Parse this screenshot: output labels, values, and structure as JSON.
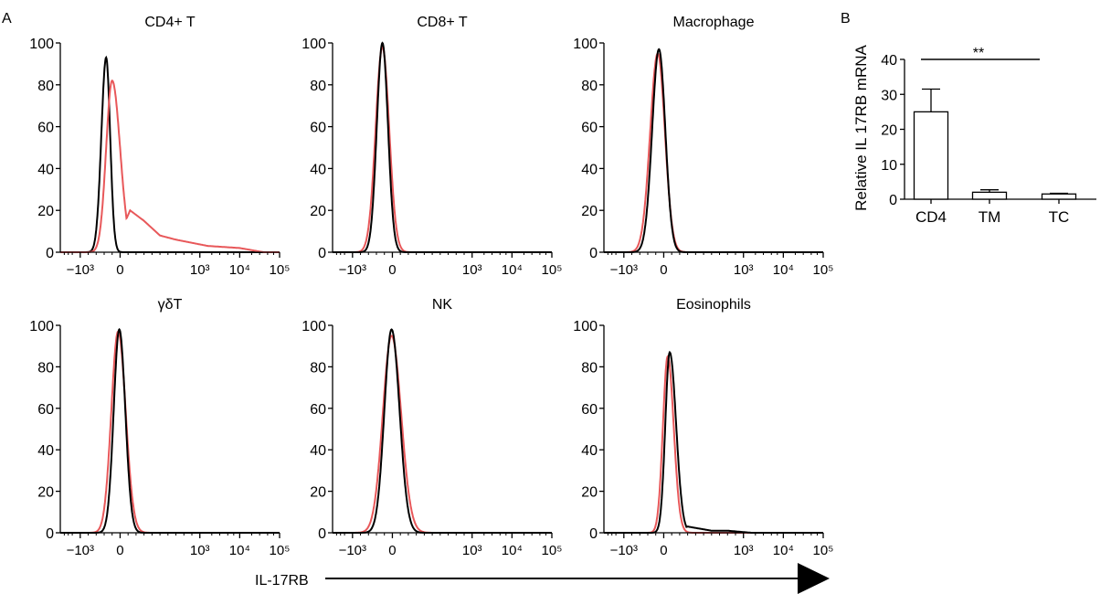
{
  "panel_a_label": "A",
  "panel_b_label": "B",
  "x_axis_label": "IL-17RB",
  "colors": {
    "red": "#e8585a",
    "black": "#000000"
  },
  "chart_data": [
    {
      "type": "area",
      "title": "CD4+ T",
      "ylim": [
        0,
        100
      ],
      "yticks": [
        "0",
        "20",
        "40",
        "60",
        "80",
        "100"
      ],
      "xticks": [
        "−10³",
        "0",
        "10³",
        "10⁴",
        "10⁵"
      ],
      "series": [
        {
          "color": "black",
          "peak_x": -0.35,
          "peak_y": 93,
          "sigma_left": 0.12,
          "sigma_right": 0.1,
          "tail": []
        },
        {
          "color": "red",
          "peak_x": -0.2,
          "peak_y": 82,
          "sigma_left": 0.15,
          "sigma_right": 0.2,
          "tail": [
            [
              0.25,
              20
            ],
            [
              0.6,
              15
            ],
            [
              1.0,
              8
            ],
            [
              1.4,
              6
            ],
            [
              2.2,
              3
            ],
            [
              3.0,
              2
            ],
            [
              3.6,
              0
            ]
          ]
        }
      ]
    },
    {
      "type": "area",
      "title": "CD8+ T",
      "ylim": [
        0,
        100
      ],
      "yticks": [
        "0",
        "20",
        "40",
        "60",
        "80",
        "100"
      ],
      "xticks": [
        "−10³",
        "0",
        "10³",
        "10⁴",
        "10⁵"
      ],
      "series": [
        {
          "color": "red",
          "peak_x": -0.25,
          "peak_y": 98,
          "sigma_left": 0.17,
          "sigma_right": 0.17,
          "tail": []
        },
        {
          "color": "black",
          "peak_x": -0.25,
          "peak_y": 100,
          "sigma_left": 0.14,
          "sigma_right": 0.14,
          "tail": []
        }
      ]
    },
    {
      "type": "area",
      "title": "Macrophage",
      "ylim": [
        0,
        100
      ],
      "yticks": [
        "0",
        "20",
        "40",
        "60",
        "80",
        "100"
      ],
      "xticks": [
        "−10³",
        "0",
        "10³",
        "10⁴",
        "10⁵"
      ],
      "series": [
        {
          "color": "red",
          "peak_x": -0.15,
          "peak_y": 95,
          "sigma_left": 0.19,
          "sigma_right": 0.18,
          "tail": []
        },
        {
          "color": "black",
          "peak_x": -0.12,
          "peak_y": 97,
          "sigma_left": 0.17,
          "sigma_right": 0.16,
          "tail": []
        }
      ]
    },
    {
      "type": "area",
      "title": "γδT",
      "ylim": [
        0,
        100
      ],
      "yticks": [
        "0",
        "20",
        "40",
        "60",
        "80",
        "100"
      ],
      "xticks": [
        "−10³",
        "0",
        "10³",
        "10⁴",
        "10⁵"
      ],
      "series": [
        {
          "color": "red",
          "peak_x": -0.05,
          "peak_y": 97,
          "sigma_left": 0.17,
          "sigma_right": 0.19,
          "tail": []
        },
        {
          "color": "black",
          "peak_x": -0.02,
          "peak_y": 98,
          "sigma_left": 0.14,
          "sigma_right": 0.15,
          "tail": []
        }
      ]
    },
    {
      "type": "area",
      "title": "NK",
      "ylim": [
        0,
        100
      ],
      "yticks": [
        "0",
        "20",
        "40",
        "60",
        "80",
        "100"
      ],
      "xticks": [
        "−10³",
        "0",
        "10³",
        "10⁴",
        "10⁵"
      ],
      "series": [
        {
          "color": "red",
          "peak_x": -0.02,
          "peak_y": 95,
          "sigma_left": 0.22,
          "sigma_right": 0.24,
          "tail": []
        },
        {
          "color": "black",
          "peak_x": -0.02,
          "peak_y": 98,
          "sigma_left": 0.18,
          "sigma_right": 0.2,
          "tail": []
        }
      ]
    },
    {
      "type": "area",
      "title": "Eosinophils",
      "ylim": [
        0,
        100
      ],
      "yticks": [
        "0",
        "20",
        "40",
        "60",
        "80",
        "100"
      ],
      "xticks": [
        "−10³",
        "0",
        "10³",
        "10⁴",
        "10⁵"
      ],
      "series": [
        {
          "color": "red",
          "peak_x": 0.1,
          "peak_y": 85,
          "sigma_left": 0.12,
          "sigma_right": 0.15,
          "tail": []
        },
        {
          "color": "black",
          "peak_x": 0.15,
          "peak_y": 87,
          "sigma_left": 0.11,
          "sigma_right": 0.16,
          "tail": [
            [
              0.6,
              3
            ],
            [
              1.2,
              1
            ],
            [
              1.6,
              1
            ],
            [
              2.2,
              0
            ]
          ]
        }
      ]
    },
    {
      "type": "bar",
      "title": "",
      "categories": [
        "CD4",
        "TM",
        "TC"
      ],
      "values": [
        25,
        2,
        1.5
      ],
      "errors": [
        6.5,
        0.7,
        0.2
      ],
      "ylabel": "Relative IL 17RB mRNA",
      "ylim": [
        0,
        40
      ],
      "yticks": [
        "0",
        "10",
        "20",
        "30",
        "40"
      ],
      "significance": {
        "label": "**",
        "from": "CD4",
        "to": "TM",
        "y": 40
      }
    }
  ]
}
